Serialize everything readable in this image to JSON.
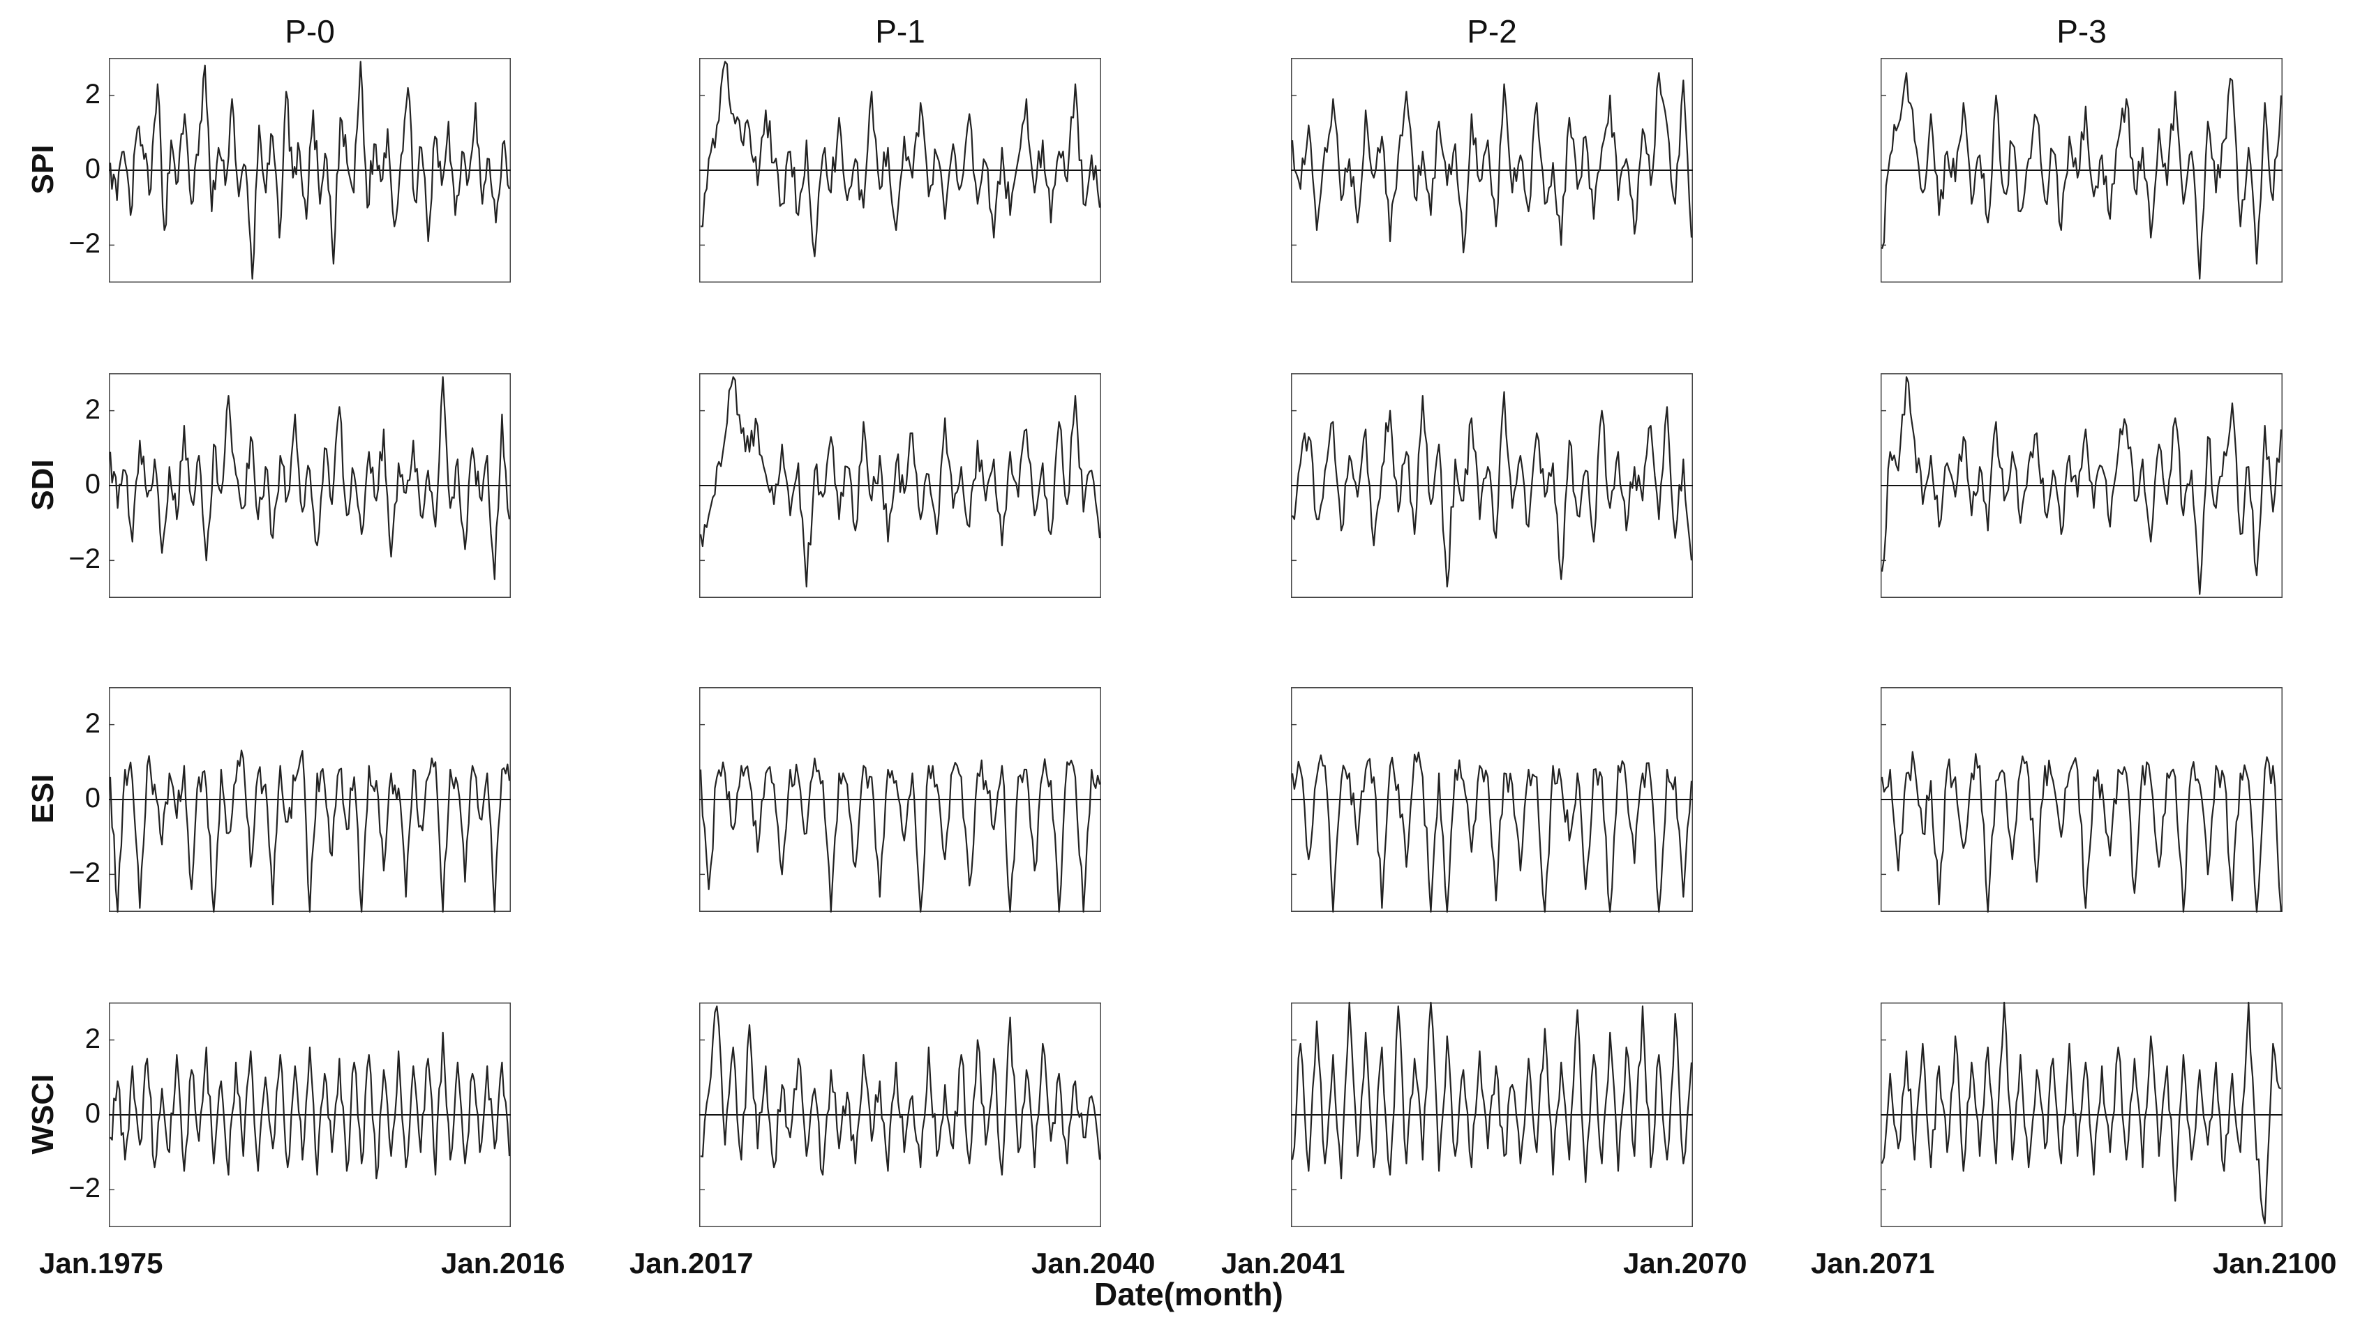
{
  "chart_data": {
    "type": "line",
    "xlabel": "Date(month)",
    "ylim": [
      -3,
      3
    ],
    "yticks": [
      2,
      0,
      -2
    ],
    "ytick_labels": [
      "2",
      "0",
      "−2"
    ],
    "grid": false,
    "line_color": "#222222",
    "columns": [
      {
        "title": "P-0",
        "start_label": "Jan.1975",
        "end_label": "Jan.2016"
      },
      {
        "title": "P-1",
        "start_label": "Jan.2017",
        "end_label": "Jan.2040"
      },
      {
        "title": "P-2",
        "start_label": "Jan.2041",
        "end_label": "Jan.2070"
      },
      {
        "title": "P-3",
        "start_label": "Jan.2071",
        "end_label": "Jan.2100"
      }
    ],
    "rows": [
      "SPI",
      "SDI",
      "ESI",
      "WSCI"
    ],
    "panels": [
      {
        "row": "SPI",
        "column": "P-0",
        "values": [
          0.2,
          -0.8,
          0.5,
          -1.2,
          1.1,
          0.3,
          -0.5,
          2.3,
          -1.6,
          0.8,
          -0.3,
          1.5,
          -0.9,
          0.4,
          2.8,
          -1.1,
          0.6,
          -0.4,
          1.9,
          -0.7,
          0.1,
          -2.9,
          1.2,
          -0.6,
          0.9,
          -1.8,
          2.1,
          -0.2,
          0.5,
          -1.3,
          1.6,
          -0.9,
          0.3,
          -2.5,
          1.4,
          0.2,
          -0.6,
          2.9,
          -1.0,
          0.7,
          -0.3,
          1.1,
          -1.5,
          0.4,
          2.2,
          -0.8,
          0.6,
          -1.9,
          0.9,
          -0.4,
          1.3,
          -1.2,
          0.5,
          -0.2,
          1.8,
          -0.9,
          0.3,
          -1.4,
          0.7,
          -0.5
        ]
      },
      {
        "row": "SPI",
        "column": "P-1",
        "values": [
          -1.5,
          0.3,
          1.2,
          2.9,
          1.5,
          0.8,
          1.1,
          -0.4,
          1.6,
          0.2,
          -0.9,
          0.5,
          -1.2,
          0.8,
          -2.3,
          0.4,
          -0.6,
          1.4,
          -0.8,
          0.3,
          -1.0,
          2.1,
          -0.5,
          0.6,
          -1.6,
          0.9,
          -0.2,
          1.8,
          -0.7,
          0.4,
          -1.3,
          0.7,
          -0.4,
          1.5,
          -0.9,
          0.2,
          -1.8,
          0.6,
          -1.2,
          0.3,
          1.9,
          -0.6,
          0.8,
          -1.4,
          0.5,
          -0.3,
          2.3,
          -0.9,
          0.4,
          -1.0
        ]
      },
      {
        "row": "SPI",
        "column": "P-2",
        "values": [
          0.8,
          -0.5,
          1.2,
          -1.6,
          0.6,
          1.9,
          -0.8,
          0.3,
          -1.4,
          1.6,
          -0.2,
          0.9,
          -1.9,
          0.4,
          2.1,
          -0.7,
          0.5,
          -1.2,
          1.3,
          -0.4,
          0.7,
          -2.2,
          1.5,
          -0.3,
          0.8,
          -1.5,
          2.3,
          -0.6,
          0.4,
          -1.1,
          1.8,
          -0.9,
          0.2,
          -2.0,
          1.4,
          -0.5,
          0.9,
          -1.3,
          0.6,
          2.0,
          -0.8,
          0.3,
          -1.7,
          1.1,
          -0.4,
          2.6,
          1.2,
          -0.9,
          2.4,
          -1.8
        ]
      },
      {
        "row": "SPI",
        "column": "P-3",
        "values": [
          -2.1,
          0.4,
          1.2,
          2.6,
          0.8,
          -0.6,
          1.5,
          -1.2,
          0.5,
          -0.3,
          1.8,
          -0.9,
          0.4,
          -1.4,
          2.0,
          -0.6,
          0.7,
          -1.1,
          0.3,
          1.4,
          -0.8,
          0.5,
          -1.6,
          0.9,
          -0.2,
          1.7,
          -0.7,
          0.4,
          -1.3,
          0.8,
          1.9,
          -0.5,
          0.6,
          -1.8,
          1.1,
          -0.4,
          2.1,
          -0.9,
          0.5,
          -2.9,
          1.3,
          -0.6,
          0.8,
          2.4,
          -1.5,
          0.6,
          -2.5,
          1.8,
          -0.8,
          2.0
        ]
      },
      {
        "row": "SDI",
        "column": "P-0",
        "values": [
          0.9,
          -0.6,
          0.4,
          -1.5,
          1.2,
          -0.3,
          0.7,
          -1.8,
          0.5,
          -0.9,
          1.6,
          -0.4,
          0.8,
          -2.0,
          1.1,
          -0.2,
          2.4,
          0.3,
          -0.6,
          1.3,
          -0.9,
          0.5,
          -1.4,
          0.8,
          -0.3,
          1.9,
          -0.7,
          0.4,
          -1.6,
          1.0,
          -0.5,
          2.1,
          -0.8,
          0.3,
          -1.3,
          0.9,
          -0.4,
          1.5,
          -1.9,
          0.6,
          -0.2,
          1.2,
          -0.8,
          0.4,
          -1.1,
          2.9,
          -0.6,
          0.7,
          -1.7,
          1.0,
          -0.3,
          0.8,
          -2.5,
          1.9,
          -0.9
        ]
      },
      {
        "row": "SDI",
        "column": "P-1",
        "values": [
          -1.3,
          -0.8,
          0.5,
          1.3,
          2.9,
          1.4,
          0.9,
          1.6,
          0.3,
          -0.5,
          1.1,
          -0.8,
          0.6,
          -2.7,
          0.4,
          -0.3,
          1.3,
          -0.9,
          0.5,
          -1.2,
          1.7,
          -0.4,
          0.8,
          -1.5,
          0.6,
          -0.2,
          1.4,
          -0.9,
          0.3,
          -1.3,
          1.8,
          -0.6,
          0.5,
          -1.1,
          1.2,
          -0.4,
          0.7,
          -1.6,
          0.9,
          -0.3,
          1.5,
          -0.8,
          0.6,
          -1.3,
          1.7,
          -0.5,
          2.4,
          -0.7,
          0.4,
          -1.4
        ]
      },
      {
        "row": "SDI",
        "column": "P-2",
        "values": [
          -0.8,
          0.6,
          1.3,
          -0.9,
          0.4,
          1.7,
          -1.2,
          0.8,
          -0.3,
          1.5,
          -1.6,
          0.5,
          2.0,
          -0.7,
          0.9,
          -1.3,
          2.4,
          -0.5,
          1.1,
          -2.7,
          0.7,
          -0.4,
          1.8,
          -0.9,
          0.5,
          -1.4,
          2.5,
          -0.6,
          0.8,
          -1.1,
          1.4,
          -0.3,
          0.6,
          -2.5,
          1.2,
          -0.8,
          0.4,
          -1.5,
          2.0,
          -0.6,
          0.9,
          -1.2,
          0.5,
          -0.4,
          1.6,
          -0.9,
          2.1,
          -1.4,
          0.7,
          -2.0
        ]
      },
      {
        "row": "SDI",
        "column": "P-3",
        "values": [
          -2.3,
          0.9,
          0.4,
          2.9,
          1.2,
          -0.5,
          0.8,
          -1.1,
          0.6,
          -0.3,
          1.3,
          -0.8,
          0.5,
          -1.2,
          1.7,
          -0.4,
          0.9,
          -1.0,
          0.6,
          1.4,
          -0.7,
          0.4,
          -1.3,
          0.8,
          -0.3,
          1.5,
          -0.6,
          0.5,
          -1.1,
          0.9,
          1.6,
          -0.4,
          0.7,
          -1.5,
          1.1,
          -0.5,
          1.8,
          -0.8,
          0.4,
          -2.9,
          1.3,
          -0.6,
          0.9,
          2.2,
          -1.3,
          0.5,
          -2.4,
          1.6,
          -0.7,
          1.5
        ]
      },
      {
        "row": "ESI",
        "column": "P-0",
        "values": [
          0.6,
          -3.0,
          0.8,
          0.5,
          -2.9,
          0.9,
          0.4,
          -1.2,
          0.7,
          -0.5,
          0.9,
          -2.4,
          0.6,
          0.3,
          -3.0,
          0.8,
          -0.9,
          0.5,
          1.1,
          -1.8,
          0.7,
          0.4,
          -2.8,
          0.9,
          -0.6,
          0.5,
          1.3,
          -3.0,
          0.7,
          0.4,
          -1.5,
          0.8,
          -0.8,
          0.6,
          -3.0,
          0.9,
          0.5,
          -1.9,
          0.7,
          0.3,
          -2.6,
          0.8,
          -0.7,
          0.6,
          1.0,
          -3.0,
          0.8,
          0.4,
          -2.2,
          0.9,
          -0.5,
          0.7,
          -3.0,
          0.8,
          0.5
        ]
      },
      {
        "row": "ESI",
        "column": "P-1",
        "values": [
          0.8,
          -2.4,
          0.6,
          0.7,
          -0.8,
          0.9,
          0.5,
          -1.4,
          0.7,
          0.4,
          -2.0,
          0.8,
          0.6,
          -0.9,
          1.1,
          0.5,
          -3.0,
          0.7,
          0.4,
          -1.8,
          0.9,
          0.6,
          -2.6,
          0.8,
          0.5,
          -1.1,
          0.7,
          -3.0,
          0.9,
          0.4,
          -1.6,
          0.8,
          0.6,
          -2.3,
          0.7,
          0.5,
          -0.8,
          0.9,
          -3.0,
          0.6,
          0.8,
          -1.9,
          0.7,
          0.5,
          -3.0,
          1.0,
          0.6,
          -3.0,
          0.8,
          0.4
        ]
      },
      {
        "row": "ESI",
        "column": "P-2",
        "values": [
          0.7,
          0.8,
          -1.6,
          0.6,
          0.9,
          -3.0,
          0.5,
          0.7,
          -1.2,
          0.8,
          0.6,
          -2.9,
          0.9,
          0.4,
          -1.8,
          1.2,
          0.6,
          -3.0,
          0.7,
          -3.0,
          0.8,
          0.5,
          -1.4,
          0.9,
          0.6,
          -2.7,
          0.7,
          0.4,
          -1.9,
          0.8,
          0.6,
          -3.0,
          0.9,
          0.5,
          -1.1,
          0.7,
          -2.4,
          0.8,
          0.6,
          -3.0,
          0.9,
          0.4,
          -1.7,
          0.7,
          0.5,
          -3.0,
          0.8,
          0.6,
          -2.6,
          0.5
        ]
      },
      {
        "row": "ESI",
        "column": "P-3",
        "values": [
          0.6,
          0.8,
          -1.9,
          0.7,
          0.9,
          -0.9,
          0.5,
          -2.8,
          0.8,
          0.6,
          -1.3,
          0.7,
          0.9,
          -3.0,
          0.5,
          0.7,
          -1.6,
          0.8,
          0.6,
          -2.2,
          0.9,
          0.5,
          -1.0,
          0.7,
          0.8,
          -2.9,
          0.6,
          0.4,
          -1.5,
          0.8,
          0.7,
          -2.5,
          0.9,
          0.5,
          -1.8,
          0.7,
          0.6,
          -3.0,
          0.8,
          0.4,
          -2.0,
          0.9,
          0.6,
          -2.7,
          0.7,
          0.5,
          -3.0,
          0.8,
          0.9,
          -3.0
        ]
      },
      {
        "row": "WSCI",
        "column": "P-0",
        "values": [
          -0.6,
          0.9,
          -1.2,
          1.3,
          -0.8,
          1.5,
          -1.4,
          0.7,
          -1.0,
          1.6,
          -1.5,
          1.2,
          -0.7,
          1.8,
          -1.3,
          0.9,
          -1.6,
          1.4,
          -1.1,
          1.7,
          -1.5,
          1.0,
          -0.9,
          1.6,
          -1.4,
          1.3,
          -1.2,
          1.8,
          -1.6,
          1.1,
          -1.0,
          1.5,
          -1.5,
          1.4,
          -1.3,
          1.6,
          -1.7,
          1.2,
          -1.1,
          1.7,
          -1.4,
          1.3,
          -1.0,
          1.5,
          -1.6,
          2.2,
          -1.2,
          1.4,
          -1.3,
          1.1,
          -1.0,
          1.3,
          -0.9,
          1.4,
          -1.1
        ]
      },
      {
        "row": "WSCI",
        "column": "P-1",
        "values": [
          -1.1,
          0.6,
          2.9,
          -0.8,
          1.8,
          -1.2,
          2.4,
          -0.9,
          1.3,
          -1.4,
          0.8,
          -0.6,
          1.5,
          -1.1,
          0.7,
          -1.6,
          1.2,
          -0.9,
          0.6,
          -1.3,
          1.6,
          -0.7,
          0.9,
          -1.5,
          1.4,
          -1.0,
          0.5,
          -1.4,
          1.8,
          -1.1,
          0.8,
          -0.9,
          1.6,
          -1.3,
          2.0,
          -0.8,
          1.5,
          -1.6,
          2.6,
          -1.0,
          1.2,
          -1.4,
          1.9,
          -0.7,
          1.1,
          -1.3,
          0.9,
          -0.6,
          0.5,
          -1.2
        ]
      },
      {
        "row": "WSCI",
        "column": "P-2",
        "values": [
          -1.2,
          1.9,
          -1.5,
          2.5,
          -1.3,
          1.6,
          -1.7,
          3.0,
          -1.1,
          2.2,
          -1.4,
          1.8,
          -1.6,
          2.9,
          -1.3,
          1.5,
          -1.2,
          3.0,
          -1.5,
          2.1,
          -1.1,
          1.2,
          -1.4,
          1.7,
          -0.9,
          1.3,
          -1.1,
          0.8,
          -1.3,
          1.5,
          -1.0,
          2.3,
          -1.6,
          1.4,
          -1.2,
          2.8,
          -1.8,
          1.6,
          -1.3,
          2.2,
          -1.5,
          1.8,
          -1.1,
          2.9,
          -1.4,
          1.6,
          -1.2,
          2.7,
          -1.3,
          1.4
        ]
      },
      {
        "row": "WSCI",
        "column": "P-3",
        "values": [
          -1.3,
          1.1,
          -0.9,
          1.7,
          -1.2,
          1.9,
          -1.4,
          1.3,
          -1.0,
          2.1,
          -1.5,
          1.4,
          -1.1,
          1.8,
          -1.3,
          3.0,
          -1.2,
          1.6,
          -1.4,
          1.2,
          -0.9,
          1.5,
          -1.3,
          1.9,
          -1.1,
          1.4,
          -1.6,
          1.3,
          -1.0,
          1.8,
          -1.2,
          1.5,
          -1.4,
          2.1,
          -1.1,
          1.3,
          -2.3,
          1.6,
          -1.2,
          1.2,
          -0.8,
          1.4,
          -1.5,
          1.1,
          -1.0,
          3.0,
          -1.2,
          -2.9,
          1.9,
          0.7
        ]
      }
    ]
  }
}
